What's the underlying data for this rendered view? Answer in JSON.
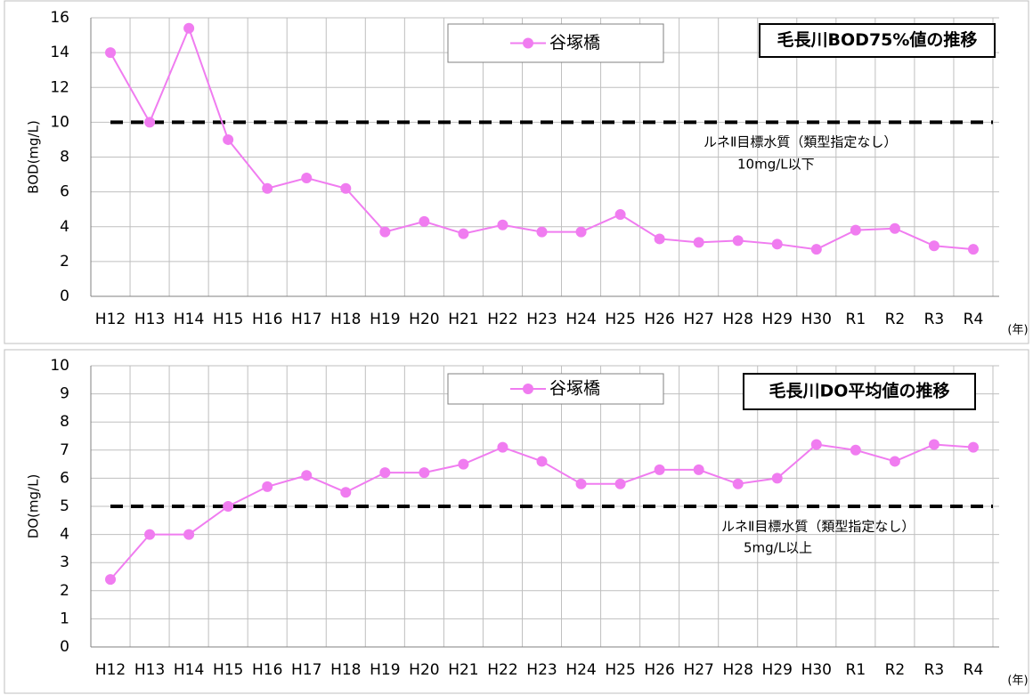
{
  "chart_data": [
    {
      "type": "line",
      "title": "毛長川BOD75%値の推移",
      "ylabel": "BOD(mg/L)",
      "xunit": "(年)",
      "categories": [
        "H12",
        "H13",
        "H14",
        "H15",
        "H16",
        "H17",
        "H18",
        "H19",
        "H20",
        "H21",
        "H22",
        "H23",
        "H24",
        "H25",
        "H26",
        "H27",
        "H28",
        "H29",
        "H30",
        "R1",
        "R2",
        "R3",
        "R4"
      ],
      "series": [
        {
          "name": "谷塚橋",
          "color": "#f07cf0",
          "values": [
            14,
            10,
            15.4,
            9,
            6.2,
            6.8,
            6.2,
            3.7,
            4.3,
            3.6,
            4.1,
            3.7,
            3.7,
            4.7,
            3.3,
            3.1,
            3.2,
            3.0,
            2.7,
            3.8,
            3.9,
            2.9,
            2.7
          ]
        }
      ],
      "ylim": [
        0,
        16
      ],
      "yticks": [
        0,
        2,
        4,
        6,
        8,
        10,
        12,
        14,
        16
      ],
      "grid": true,
      "reference": 10,
      "annotation": [
        "ルネⅡ目標水質（類型指定なし）",
        "10mg/L以下"
      ]
    },
    {
      "type": "line",
      "title": "毛長川DO平均値の推移",
      "ylabel": "DO(mg/L)",
      "xunit": "(年)",
      "categories": [
        "H12",
        "H13",
        "H14",
        "H15",
        "H16",
        "H17",
        "H18",
        "H19",
        "H20",
        "H21",
        "H22",
        "H23",
        "H24",
        "H25",
        "H26",
        "H27",
        "H28",
        "H29",
        "H30",
        "R1",
        "R2",
        "R3",
        "R4"
      ],
      "series": [
        {
          "name": "谷塚橋",
          "color": "#f07cf0",
          "values": [
            2.4,
            4.0,
            4.0,
            5.0,
            5.7,
            6.1,
            5.5,
            6.2,
            6.2,
            6.5,
            7.1,
            6.6,
            5.8,
            5.8,
            6.3,
            6.3,
            5.8,
            6.0,
            7.2,
            7.0,
            6.6,
            7.2,
            7.1
          ]
        }
      ],
      "ylim": [
        0,
        10
      ],
      "yticks": [
        0,
        1,
        2,
        3,
        4,
        5,
        6,
        7,
        8,
        9,
        10
      ],
      "grid": true,
      "reference": 5,
      "annotation": [
        "ルネⅡ目標水質（類型指定なし）",
        "5mg/L以上"
      ]
    }
  ]
}
